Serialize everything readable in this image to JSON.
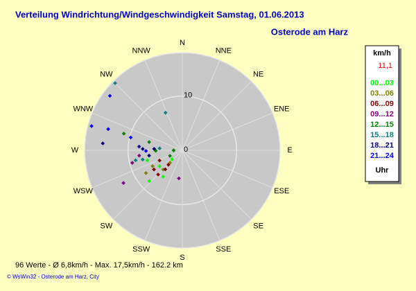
{
  "chart_data": {
    "type": "polar-scatter",
    "title": "Verteilung Windrichtung/Windgeschwindigkeit  Samstag, 01.06.2013",
    "subtitle": "Osterode am Harz",
    "directions": [
      "N",
      "NNE",
      "NE",
      "ENE",
      "E",
      "ESE",
      "SE",
      "SSE",
      "S",
      "SSW",
      "SW",
      "WSW",
      "W",
      "WNW",
      "NW",
      "NNW"
    ],
    "rlim": [
      0,
      18
    ],
    "rticks": [
      0,
      10
    ],
    "legend_title": "km/h",
    "current_value": {
      "value": 11.1,
      "label": "11,1"
    },
    "legend_footer": "Uhr",
    "series": [
      {
        "name": "00...03",
        "color": "#00ff00",
        "direction": [
          229,
          235,
          254,
          216,
          227
        ],
        "speed": [
          2.5,
          5.1,
          6.7,
          6.0,
          8.3
        ]
      },
      {
        "name": "03...06",
        "color": "#808000",
        "direction": [
          242,
          238,
          225,
          225
        ],
        "speed": [
          6.2,
          7.9,
          5.0,
          3.2
        ]
      },
      {
        "name": "06...09",
        "color": "#800000",
        "direction": [
          222,
          246,
          236,
          225,
          224
        ],
        "speed": [
          4.7,
          4.6,
          6.3,
          6.3,
          3.7
        ]
      },
      {
        "name": "09...12",
        "color": "#800080",
        "direction": [
          241,
          256,
          187,
          263
        ],
        "speed": [
          12.4,
          9.5,
          5.2,
          8.0
        ]
      },
      {
        "name": "12...15",
        "color": "#008000",
        "direction": [
          286,
          269,
          284,
          270,
          246
        ],
        "speed": [
          11.2,
          4.9,
          6.3,
          1.6,
          2.5
        ]
      },
      {
        "name": "15...18",
        "color": "#008080",
        "direction": [
          315,
          336,
          258,
          275,
          257
        ],
        "speed": [
          17.5,
          7.6,
          8.8,
          4.2,
          7.5
        ]
      },
      {
        "name": "18...21",
        "color": "#000080",
        "direction": [
          275,
          272,
          261,
          275,
          273
        ],
        "speed": [
          14.7,
          7.3,
          6.2,
          8.0,
          5.2
        ]
      },
      {
        "name": "21...24",
        "color": "#0000ff",
        "direction": [
          285,
          286,
          307,
          269,
          284
        ],
        "speed": [
          17.3,
          14.2,
          16.7,
          6.7,
          9.8
        ]
      }
    ],
    "footer": "96 Werte   -   Ø 6,8km/h  -  Max. 17,5km/h   -   162.2 km",
    "credit": "© WsWin32  -  Osterode am Harz, City"
  }
}
